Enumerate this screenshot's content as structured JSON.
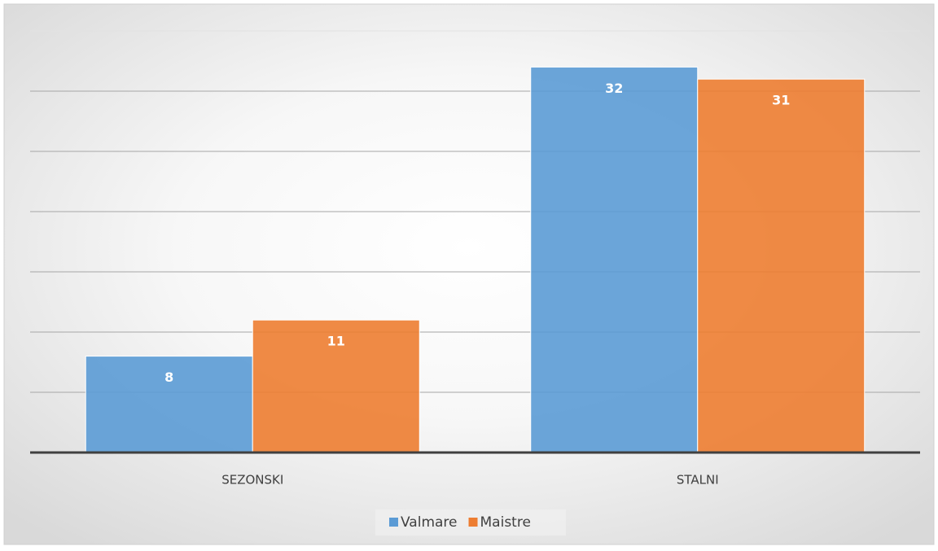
{
  "chart_data": {
    "type": "bar",
    "categories": [
      "SEZONSKI",
      "STALNI"
    ],
    "series": [
      {
        "name": "Valmare",
        "color": "#5b9bd5",
        "values": [
          8,
          32
        ]
      },
      {
        "name": "Maistre",
        "color": "#ed7d31",
        "values": [
          11,
          31
        ]
      }
    ],
    "ylim": [
      0,
      35
    ],
    "yticks": [
      0,
      5,
      10,
      15,
      20,
      25,
      30,
      35
    ],
    "grid": true,
    "legend": "bottom"
  }
}
